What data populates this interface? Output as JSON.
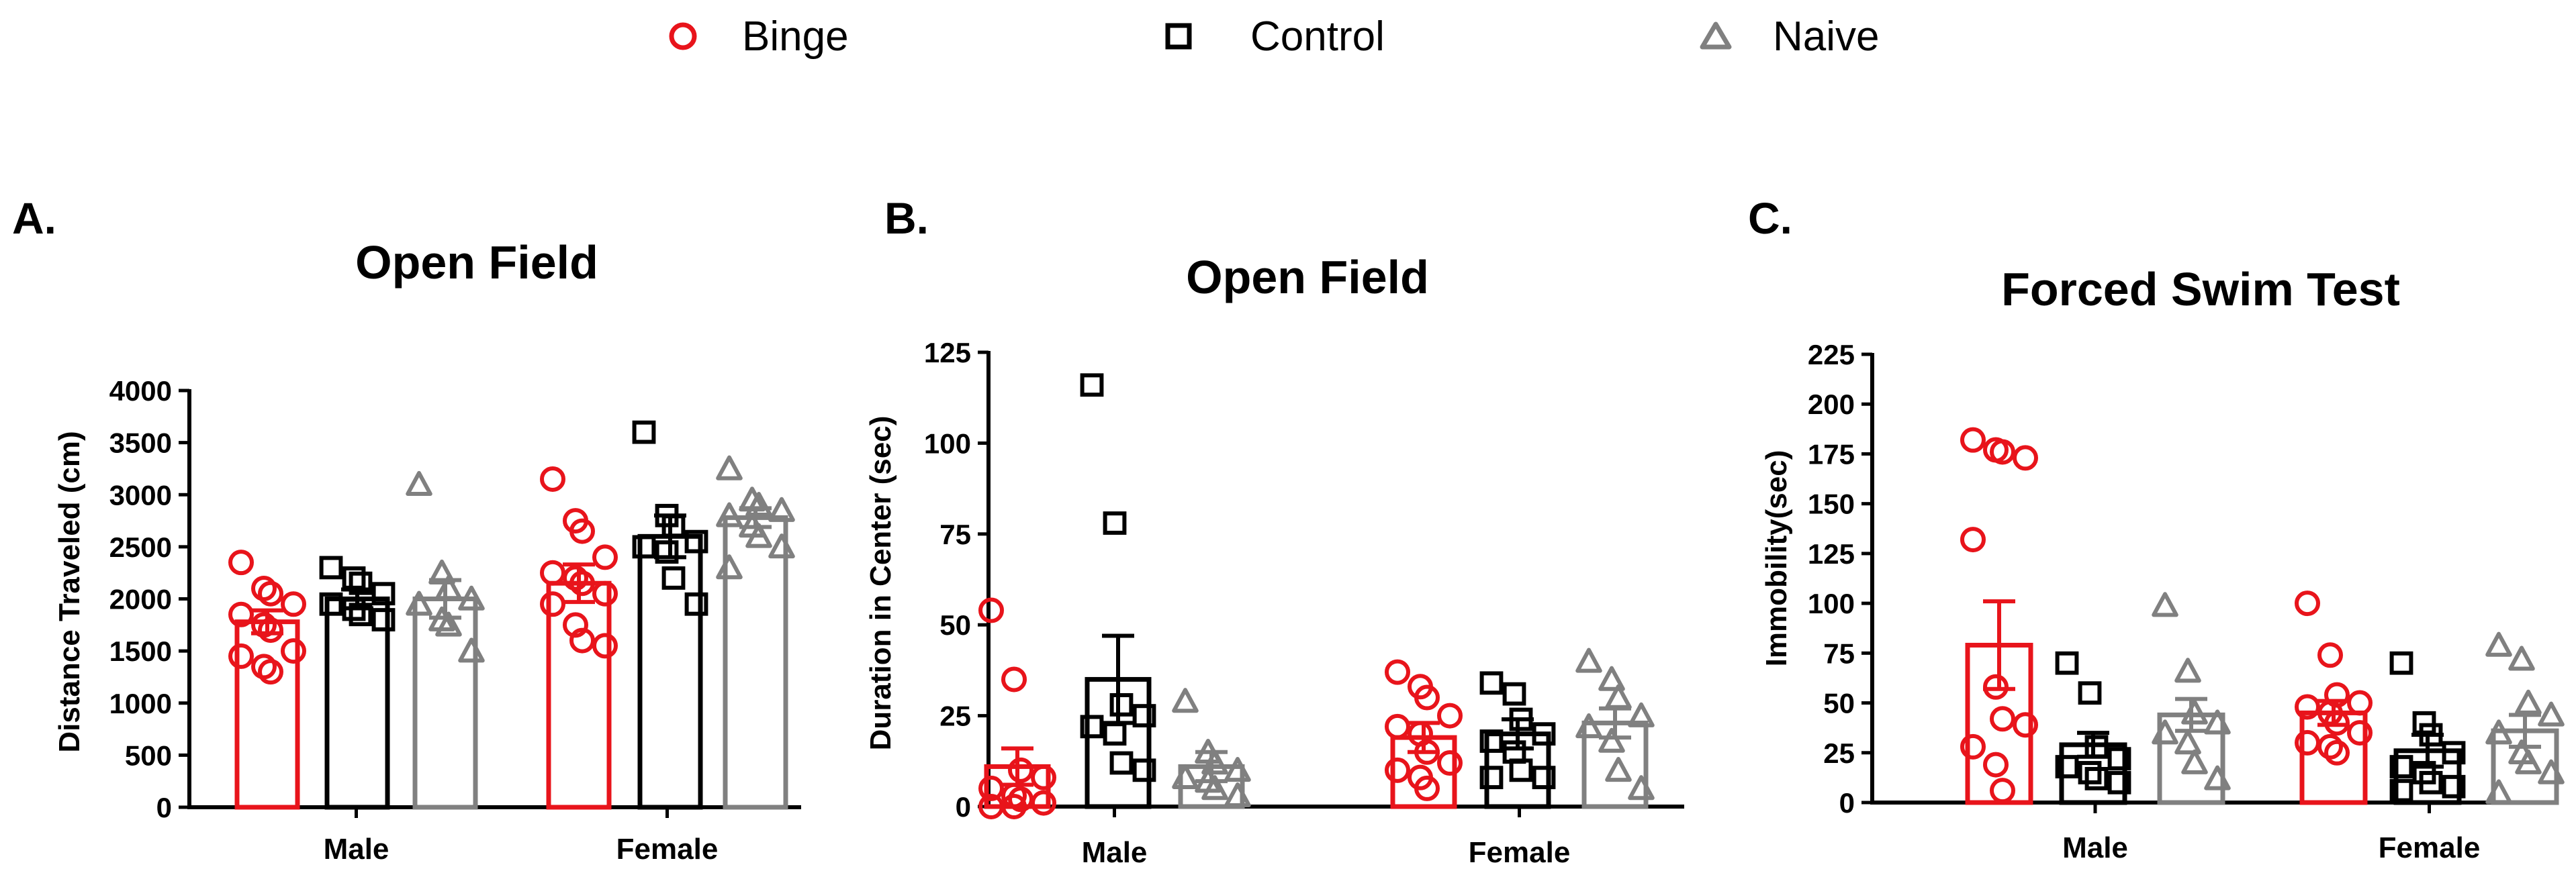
{
  "legend": [
    {
      "name": "Binge",
      "color": "#e8141b",
      "marker": "circle"
    },
    {
      "name": "Control",
      "color": "#000000",
      "marker": "square"
    },
    {
      "name": "Naive",
      "color": "#808080",
      "marker": "triangle"
    }
  ],
  "chart_data": [
    {
      "type": "bar",
      "panel": "A.",
      "title": "Open Field",
      "ylabel": "Distance Traveled (cm)",
      "xlabel": "",
      "ylim": [
        0,
        4000
      ],
      "yticks": [
        "0",
        "500",
        "1000",
        "1500",
        "2000",
        "2500",
        "3000",
        "3500",
        "4000"
      ],
      "categories": [
        "Male",
        "Female"
      ],
      "series": [
        {
          "name": "Binge",
          "means": [
            1780,
            2150
          ],
          "sem": [
            110,
            180
          ],
          "points": [
            [
              2350,
              2100,
              2050,
              1950,
              1850,
              1750,
              1700,
              1500,
              1450,
              1350,
              1300
            ],
            [
              3150,
              2750,
              2650,
              2400,
              2250,
              2200,
              2150,
              2050,
              1950,
              1750,
              1600,
              1550
            ]
          ]
        },
        {
          "name": "Control",
          "means": [
            2000,
            2600
          ],
          "sem": [
            90,
            200
          ],
          "points": [
            [
              2300,
              2200,
              2150,
              2050,
              1950,
              1900,
              1850,
              1800
            ],
            [
              3600,
              2800,
              2700,
              2550,
              2500,
              2450,
              2200,
              1950
            ]
          ]
        },
        {
          "name": "Naive",
          "means": [
            2000,
            2780
          ],
          "sem": [
            180,
            90
          ],
          "points": [
            [
              3100,
              2250,
              2100,
              2000,
              1950,
              1800,
              1750,
              1500
            ],
            [
              3250,
              2950,
              2900,
              2850,
              2800,
              2700,
              2600,
              2500,
              2300
            ]
          ]
        }
      ]
    },
    {
      "type": "bar",
      "panel": "B.",
      "title": "Open Field",
      "ylabel": "Duration in Center (sec)",
      "xlabel": "",
      "ylim": [
        0,
        125
      ],
      "yticks": [
        "0",
        "25",
        "50",
        "75",
        "100",
        "125"
      ],
      "categories": [
        "Male",
        "Female"
      ],
      "series": [
        {
          "name": "Binge",
          "means": [
            11,
            19
          ],
          "sem": [
            5,
            4
          ],
          "points": [
            [
              54,
              35,
              10,
              8,
              5,
              3,
              2,
              1,
              0,
              0
            ],
            [
              37,
              33,
              30,
              25,
              22,
              20,
              15,
              12,
              10,
              8,
              5
            ]
          ]
        },
        {
          "name": "Control",
          "means": [
            35,
            20
          ],
          "sem": [
            12,
            4
          ],
          "points": [
            [
              116,
              78,
              28,
              25,
              22,
              20,
              12,
              10
            ],
            [
              34,
              31,
              24,
              20,
              18,
              15,
              10,
              8,
              8
            ]
          ]
        },
        {
          "name": "Naive",
          "means": [
            11,
            23
          ],
          "sem": [
            4,
            4
          ],
          "points": [
            [
              29,
              15,
              12,
              10,
              8,
              7,
              5,
              3
            ],
            [
              40,
              35,
              30,
              25,
              22,
              18,
              10,
              5
            ]
          ]
        }
      ]
    },
    {
      "type": "bar",
      "panel": "C.",
      "title": "Forced Swim Test",
      "ylabel": "Immobility(sec)",
      "xlabel": "",
      "ylim": [
        0,
        225
      ],
      "yticks": [
        "0",
        "25",
        "50",
        "75",
        "100",
        "125",
        "150",
        "175",
        "200",
        "225"
      ],
      "categories": [
        "Male",
        "Female"
      ],
      "series": [
        {
          "name": "Binge",
          "means": [
            79,
            45
          ],
          "sem": [
            22,
            6
          ],
          "points": [
            [
              182,
              177,
              176,
              173,
              132,
              58,
              42,
              39,
              28,
              19,
              6
            ],
            [
              100,
              74,
              54,
              50,
              48,
              45,
              40,
              35,
              30,
              28,
              25
            ]
          ]
        },
        {
          "name": "Control",
          "means": [
            29,
            26
          ],
          "sem": [
            6,
            8
          ],
          "points": [
            [
              70,
              55,
              28,
              22,
              18,
              15,
              12,
              10
            ],
            [
              70,
              40,
              34,
              25,
              18,
              15,
              10,
              8,
              6
            ]
          ]
        },
        {
          "name": "Naive",
          "means": [
            44,
            36
          ],
          "sem": [
            8,
            8
          ],
          "points": [
            [
              99,
              66,
              45,
              40,
              35,
              30,
              20,
              12
            ],
            [
              79,
              72,
              50,
              44,
              35,
              25,
              20,
              15,
              5
            ]
          ]
        }
      ]
    }
  ]
}
